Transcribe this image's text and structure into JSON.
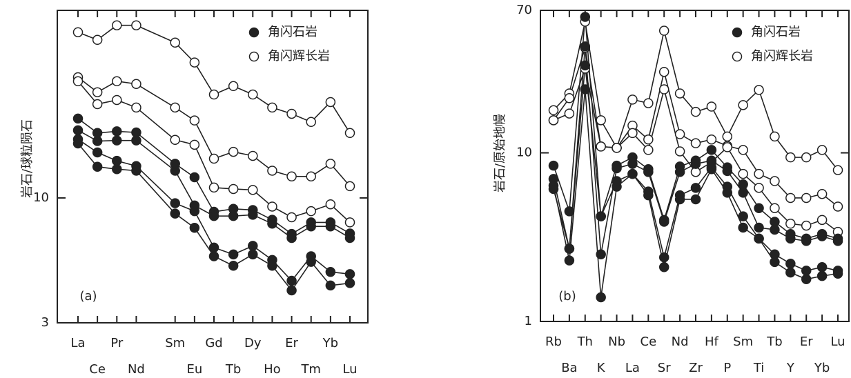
{
  "chart_data": [
    {
      "type": "line",
      "panel_label": "(a)",
      "ylabel": "岩石/球粒陨石",
      "log_scale": true,
      "categories": [
        "La",
        "Ce",
        "Pr",
        "Nd",
        "Sm",
        "Eu",
        "Gd",
        "Tb",
        "Dy",
        "Ho",
        "Er",
        "Tm",
        "Yb",
        "Lu"
      ],
      "ylim": [
        3,
        61
      ],
      "yticks": [
        3,
        10
      ],
      "legend": [
        {
          "name": "角闪石岩",
          "marker": "filled"
        },
        {
          "name": "角闪辉长岩",
          "marker": "open"
        }
      ],
      "series": [
        {
          "marker": "open",
          "color": "#222",
          "values": [
            49.4,
            45.9,
            52.8,
            52.8,
            44.7,
            36.9,
            27.1,
            29.4,
            27.1,
            23.9,
            22.5,
            20.8,
            25.2,
            18.7
          ]
        },
        {
          "marker": "open",
          "color": "#222",
          "values": [
            32.0,
            27.7,
            30.8,
            30.0,
            23.9,
            21.1,
            14.6,
            15.6,
            15.0,
            13.0,
            12.3,
            12.3,
            13.9,
            11.2
          ]
        },
        {
          "marker": "open",
          "color": "#222",
          "values": [
            30.8,
            24.7,
            25.7,
            23.9,
            17.5,
            16.7,
            11.05,
            10.9,
            10.8,
            9.2,
            8.3,
            8.8,
            9.4,
            7.9
          ]
        },
        {
          "marker": "filled",
          "color": "#222",
          "values": [
            21.5,
            18.7,
            19.0,
            18.8,
            13.9,
            12.2,
            8.75,
            9.0,
            8.9,
            8.1,
            7.07,
            7.9,
            7.9,
            7.1
          ]
        },
        {
          "marker": "filled",
          "color": "#222",
          "values": [
            19.2,
            17.3,
            17.4,
            17.4,
            13.0,
            9.3,
            8.4,
            8.4,
            8.5,
            7.8,
            6.8,
            7.6,
            7.6,
            6.8
          ]
        },
        {
          "marker": "filled",
          "color": "#222",
          "values": [
            17.6,
            15.5,
            14.3,
            13.6,
            9.5,
            8.8,
            6.2,
            5.8,
            6.3,
            5.5,
            4.5,
            5.7,
            4.9,
            4.8
          ]
        },
        {
          "marker": "filled",
          "color": "#222",
          "values": [
            16.9,
            13.5,
            13.2,
            13.0,
            8.6,
            7.5,
            5.7,
            5.2,
            5.8,
            5.2,
            4.1,
            5.4,
            4.3,
            4.4
          ]
        }
      ]
    },
    {
      "type": "line",
      "panel_label": "(b)",
      "ylabel": "岩石/原始地幔",
      "log_scale": true,
      "categories": [
        "Rb",
        "Ba",
        "Th",
        "K",
        "Nb",
        "La",
        "Ce",
        "Sr",
        "Nd",
        "Zr",
        "Hf",
        "P",
        "Sm",
        "Ti",
        "Tb",
        "Y",
        "Er",
        "Yb",
        "Lu"
      ],
      "ylim": [
        1,
        70
      ],
      "yticks": [
        1,
        10,
        70
      ],
      "legend": [
        {
          "name": "角闪石岩",
          "marker": "filled"
        },
        {
          "name": "角闪辉长岩",
          "marker": "open"
        }
      ],
      "series": [
        {
          "marker": "open",
          "color": "#222",
          "values": [
            17.9,
            22.5,
            60,
            15.6,
            10.7,
            20.7,
            19.7,
            53,
            22.5,
            17.5,
            18.8,
            12.5,
            19.2,
            23.6,
            12.5,
            9.4,
            9.4,
            10.4,
            7.9
          ]
        },
        {
          "marker": "open",
          "color": "#222",
          "values": [
            15.6,
            21.1,
            42,
            10.9,
            10.7,
            14.5,
            12.0,
            30.2,
            12.9,
            11.4,
            12.0,
            11.0,
            10.4,
            7.5,
            6.8,
            5.4,
            5.4,
            5.7,
            4.8
          ]
        },
        {
          "marker": "open",
          "color": "#222",
          "values": [
            15.6,
            17.1,
            31.6,
            10.9,
            10.7,
            13.1,
            10.4,
            23.8,
            10.2,
            7.7,
            8.8,
            10.8,
            7.5,
            6.2,
            4.7,
            3.8,
            3.7,
            4.0,
            3.4
          ]
        },
        {
          "marker": "filled",
          "color": "#222",
          "values": [
            8.4,
            4.5,
            64,
            4.2,
            8.4,
            9.4,
            8.0,
            4.0,
            8.3,
            9.0,
            10.4,
            8.2,
            6.5,
            4.7,
            3.9,
            3.3,
            3.1,
            3.3,
            3.1
          ]
        },
        {
          "marker": "filled",
          "color": "#222",
          "values": [
            7.0,
            2.7,
            42.8,
            2.5,
            8.1,
            8.6,
            7.7,
            3.9,
            7.7,
            8.6,
            9.0,
            7.8,
            5.8,
            3.6,
            3.5,
            3.1,
            3.0,
            3.2,
            3.0
          ]
        },
        {
          "marker": "filled",
          "color": "#222",
          "values": [
            6.4,
            2.3,
            23.8,
            1.39,
            6.3,
            7.5,
            5.9,
            2.4,
            5.6,
            6.2,
            8.2,
            6.3,
            4.2,
            3.1,
            2.5,
            2.2,
            2.0,
            2.1,
            2.0
          ]
        },
        {
          "marker": "filled",
          "color": "#222",
          "values": [
            6.1,
            2.7,
            33,
            4.2,
            6.8,
            7.5,
            5.6,
            2.1,
            5.3,
            5.3,
            8.0,
            5.8,
            3.6,
            3.1,
            2.25,
            1.95,
            1.78,
            1.86,
            1.92
          ]
        }
      ]
    }
  ]
}
